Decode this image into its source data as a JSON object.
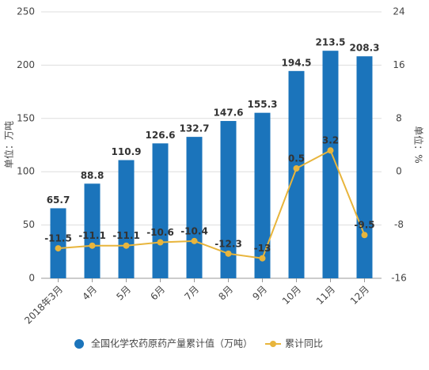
{
  "chart_data": {
    "type": "bar-line",
    "categories": [
      "2018年3月",
      "4月",
      "5月",
      "6月",
      "7月",
      "8月",
      "9月",
      "10月",
      "11月",
      "12月"
    ],
    "series": [
      {
        "name": "全国化学农药原药产量累计值（万吨）",
        "color": "#1b74bb",
        "type": "bar",
        "values": [
          65.7,
          88.8,
          110.9,
          126.6,
          132.7,
          147.6,
          155.3,
          194.5,
          213.5,
          208.3
        ]
      },
      {
        "name": "累计同比",
        "color": "#e8b53c",
        "type": "line",
        "axis": "y2",
        "values": [
          -11.5,
          -11.1,
          -11.1,
          -10.6,
          -10.4,
          -12.3,
          -13,
          0.5,
          3.2,
          -9.5
        ]
      }
    ],
    "ylabel": "单位：万吨",
    "y2label": "单位：%",
    "ylim": [
      0,
      250
    ],
    "yticks": [
      0,
      50,
      100,
      150,
      200,
      250
    ],
    "y2lim": [
      -16,
      24
    ],
    "y2ticks": [
      -16,
      -8,
      0,
      8,
      16,
      24
    ],
    "grid": true
  }
}
